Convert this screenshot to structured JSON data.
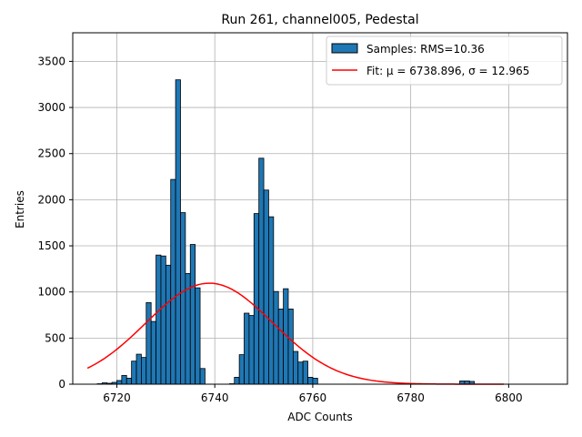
{
  "chart_data": {
    "type": "bar",
    "title": "Run 261, channel005, Pedestal",
    "xlabel": "ADC Counts",
    "ylabel": "Entries",
    "xlim": [
      6711,
      6812
    ],
    "ylim": [
      0,
      3810
    ],
    "xticks": [
      6720,
      6740,
      6760,
      6780,
      6800
    ],
    "xtick_labels": [
      "6720",
      "6740",
      "6760",
      "6780",
      "6800"
    ],
    "yticks": [
      0,
      500,
      1000,
      1500,
      2000,
      2500,
      3000,
      3500
    ],
    "ytick_labels": [
      "0",
      "500",
      "1000",
      "1500",
      "2000",
      "2500",
      "3000",
      "3500"
    ],
    "grid": true,
    "legend_position": "top-right",
    "histogram": {
      "name": "Samples: RMS=10.36",
      "color": "#1f77b4",
      "edge_color": "#000000",
      "bin_width": 1,
      "bin_starts": [
        6716,
        6717,
        6718,
        6719,
        6720,
        6721,
        6722,
        6723,
        6724,
        6725,
        6726,
        6727,
        6728,
        6729,
        6730,
        6731,
        6732,
        6733,
        6734,
        6735,
        6736,
        6737,
        6738,
        6739,
        6740,
        6741,
        6742,
        6743,
        6744,
        6745,
        6746,
        6747,
        6748,
        6749,
        6750,
        6751,
        6752,
        6753,
        6754,
        6755,
        6756,
        6757,
        6758,
        6759,
        6760,
        6790,
        6791,
        6792
      ],
      "values": [
        5,
        15,
        10,
        20,
        40,
        95,
        65,
        250,
        325,
        290,
        885,
        680,
        1400,
        1390,
        1290,
        2220,
        3300,
        1860,
        1200,
        1515,
        1045,
        170,
        0,
        0,
        0,
        0,
        0,
        5,
        75,
        320,
        770,
        745,
        1850,
        2450,
        2105,
        1815,
        1005,
        815,
        1035,
        815,
        355,
        240,
        250,
        75,
        65,
        35,
        35,
        30
      ]
    },
    "fit": {
      "name": "Fit: μ = 6738.896, σ = 12.965",
      "color": "#ff0000",
      "mu": 6738.896,
      "sigma": 12.965,
      "amplitude": 1095,
      "x_range": [
        6714,
        6799
      ]
    }
  }
}
